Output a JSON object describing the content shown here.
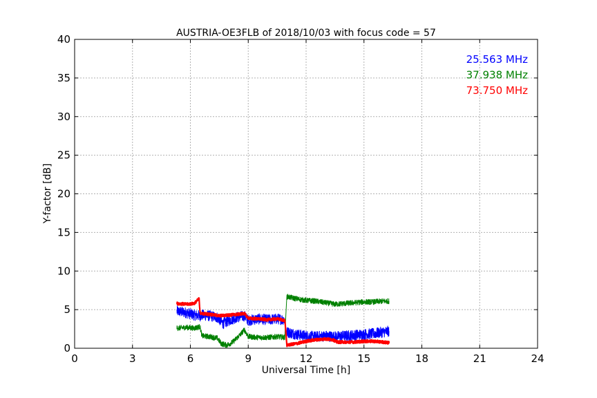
{
  "chart_data": {
    "type": "line",
    "title": "AUSTRIA-OE3FLB of 2018/10/03 with focus code = 57",
    "xlabel": "Universal Time [h]",
    "ylabel": "Y-factor [dB]",
    "xlim": [
      0,
      24
    ],
    "ylim": [
      0,
      40
    ],
    "xticks": [
      0,
      3,
      6,
      9,
      12,
      15,
      18,
      21,
      24
    ],
    "yticks": [
      0,
      5,
      10,
      15,
      20,
      25,
      30,
      35,
      40
    ],
    "grid": true,
    "legend_position": "top-right",
    "series": [
      {
        "name": "25.563 MHz",
        "color": "#0000ff",
        "x": [
          5.3,
          5.8,
          6.2,
          6.5,
          6.6,
          7.0,
          7.4,
          7.7,
          8.0,
          8.4,
          8.8,
          9.0,
          9.5,
          10.0,
          10.5,
          10.9,
          11.0,
          11.5,
          12.0,
          12.5,
          13.0,
          13.5,
          14.0,
          14.5,
          15.0,
          15.5,
          16.0,
          16.3
        ],
        "y": [
          4.8,
          4.6,
          4.3,
          4.2,
          4.3,
          4.2,
          4.0,
          3.2,
          3.6,
          4.0,
          4.2,
          3.6,
          3.8,
          3.7,
          3.8,
          3.7,
          2.1,
          1.8,
          1.6,
          1.5,
          1.6,
          1.5,
          1.6,
          1.7,
          1.8,
          1.9,
          2.1,
          2.2
        ],
        "noise": 0.7
      },
      {
        "name": "37.938 MHz",
        "color": "#008000",
        "x": [
          5.3,
          5.8,
          6.2,
          6.5,
          6.6,
          7.0,
          7.4,
          7.6,
          7.9,
          8.2,
          8.6,
          8.8,
          9.0,
          9.5,
          10.0,
          10.5,
          10.9,
          11.0,
          11.5,
          12.0,
          12.5,
          13.0,
          13.5,
          14.0,
          14.5,
          15.0,
          15.5,
          16.0,
          16.3
        ],
        "y": [
          2.6,
          2.7,
          2.6,
          2.8,
          1.6,
          1.5,
          1.3,
          0.6,
          0.4,
          0.8,
          1.8,
          2.4,
          1.5,
          1.4,
          1.4,
          1.5,
          1.4,
          6.7,
          6.4,
          6.2,
          6.1,
          5.9,
          5.7,
          5.8,
          5.9,
          6.0,
          6.0,
          6.1,
          6.1
        ],
        "noise": 0.35
      },
      {
        "name": "73.750 MHz",
        "color": "#ff0000",
        "x": [
          5.3,
          5.8,
          6.2,
          6.45,
          6.5,
          6.6,
          7.0,
          7.5,
          8.0,
          8.5,
          8.8,
          9.0,
          9.5,
          10.0,
          10.5,
          10.9,
          11.0,
          11.5,
          12.0,
          12.5,
          13.0,
          13.4,
          13.6,
          14.0,
          14.5,
          15.0,
          15.5,
          16.0,
          16.3
        ],
        "y": [
          5.8,
          5.7,
          5.8,
          6.4,
          4.6,
          4.5,
          4.4,
          4.2,
          4.3,
          4.4,
          4.5,
          3.9,
          3.8,
          3.7,
          3.8,
          3.6,
          0.4,
          0.6,
          0.9,
          1.1,
          1.2,
          1.1,
          0.8,
          0.8,
          0.8,
          0.9,
          0.9,
          0.8,
          0.7
        ],
        "noise": 0.18
      }
    ]
  }
}
